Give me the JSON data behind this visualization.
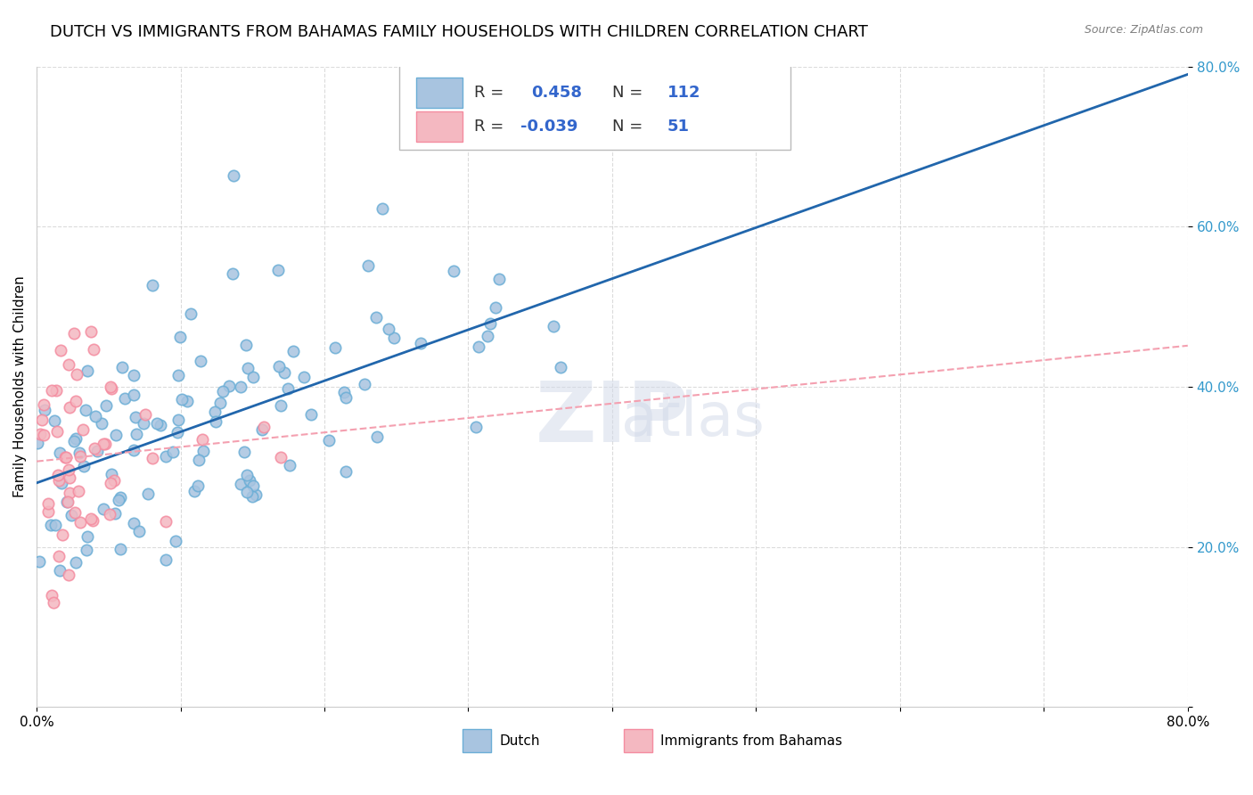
{
  "title": "DUTCH VS IMMIGRANTS FROM BAHAMAS FAMILY HOUSEHOLDS WITH CHILDREN CORRELATION CHART",
  "source": "Source: ZipAtlas.com",
  "xlabel": "",
  "ylabel": "Family Households with Children",
  "xmin": 0.0,
  "xmax": 0.8,
  "ymin": 0.0,
  "ymax": 0.8,
  "xticks": [
    0.0,
    0.1,
    0.2,
    0.3,
    0.4,
    0.5,
    0.6,
    0.7,
    0.8
  ],
  "yticks": [
    0.0,
    0.2,
    0.4,
    0.6,
    0.8
  ],
  "xtick_labels": [
    "0.0%",
    "",
    "",
    "",
    "",
    "",
    "",
    "",
    "80.0%"
  ],
  "ytick_labels": [
    "",
    "20.0%",
    "40.0%",
    "60.0%",
    "80.0%"
  ],
  "dutch_R": 0.458,
  "dutch_N": 112,
  "bahamas_R": -0.039,
  "bahamas_N": 51,
  "dutch_color": "#a8c4e0",
  "dutch_edge_color": "#6baed6",
  "bahamas_color": "#f4b8c1",
  "bahamas_edge_color": "#f48ca0",
  "dutch_line_color": "#2166ac",
  "bahamas_line_color": "#f4a0b0",
  "grid_color": "#cccccc",
  "watermark_text": "ZIPAtlas",
  "watermark_color": "#d0d8e8",
  "legend_R_color": "#3366cc",
  "legend_N_color": "#3366cc",
  "figwidth": 14.06,
  "figheight": 8.92,
  "title_fontsize": 13,
  "axis_label_fontsize": 11,
  "legend_fontsize": 13,
  "tick_fontsize": 11,
  "random_seed_dutch": 42,
  "random_seed_bahamas": 123
}
